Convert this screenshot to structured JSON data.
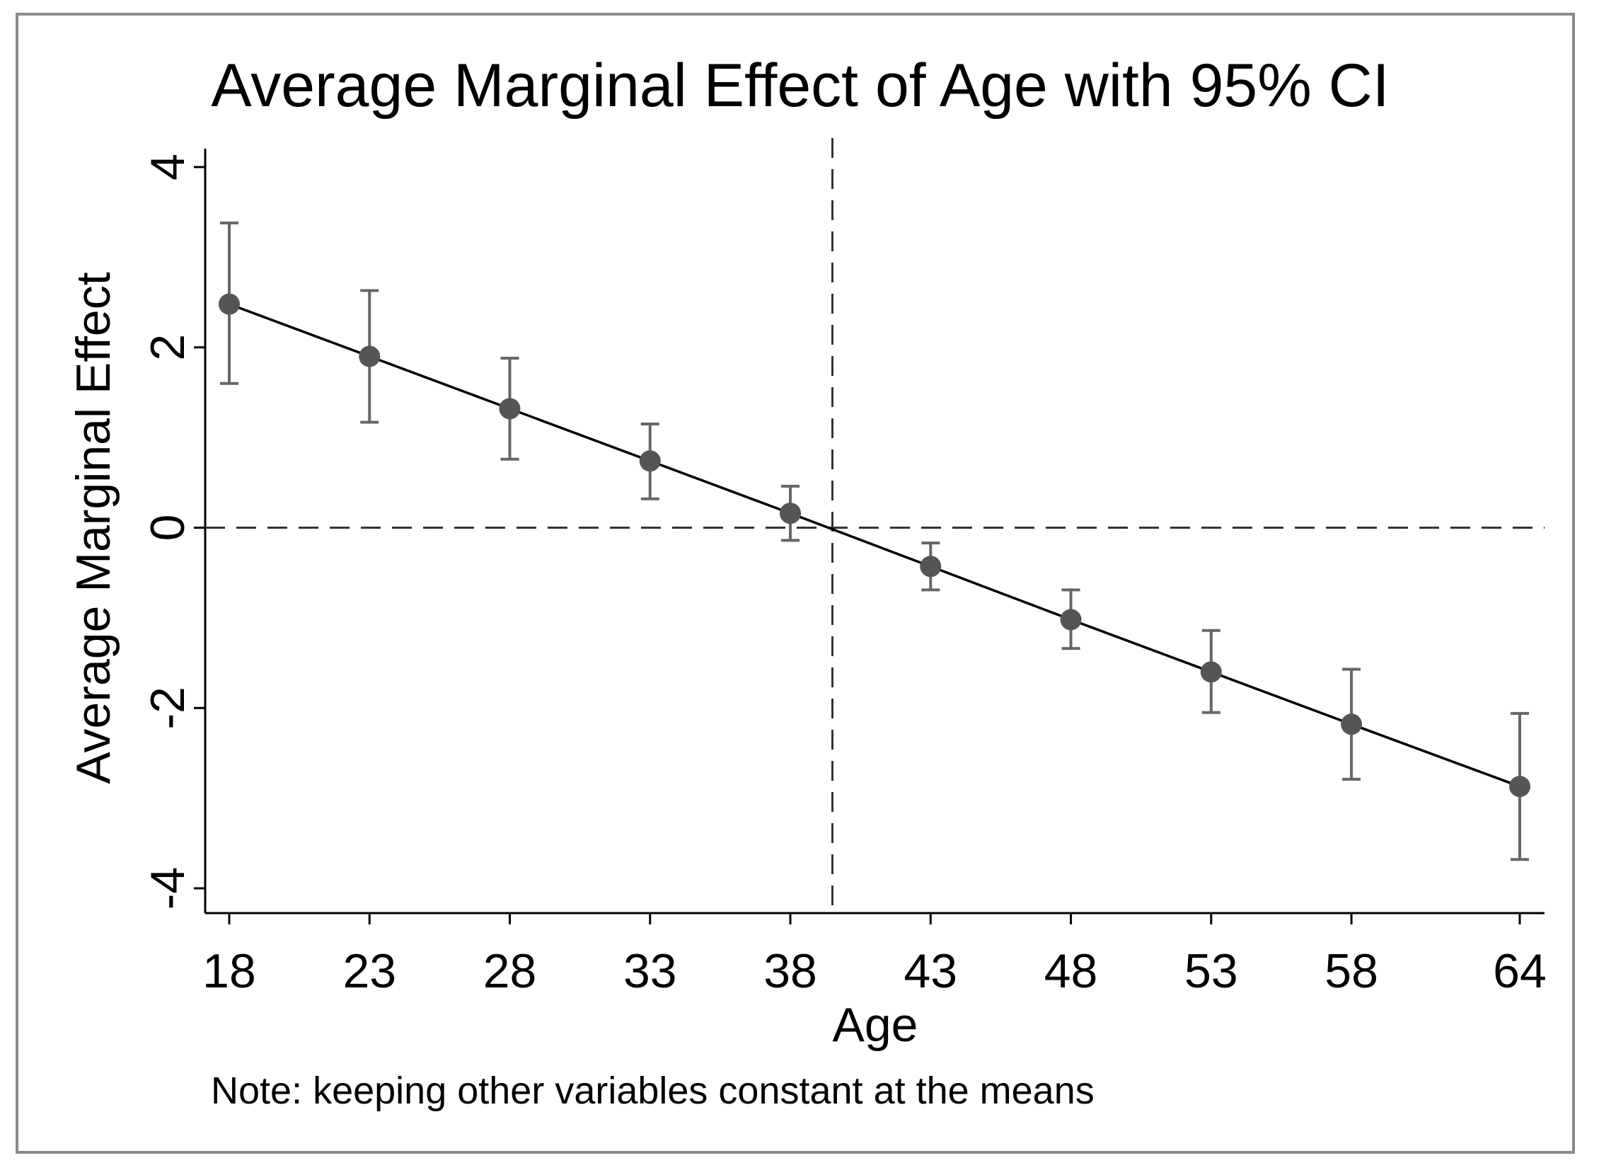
{
  "chart_data": {
    "type": "line",
    "title": "Average Marginal Effect of Age with 95% CI",
    "xlabel": "Age",
    "ylabel": "Average Marginal Effect",
    "note": "Note: keeping other variables constant at the means",
    "x": [
      18,
      23,
      28,
      33,
      38,
      43,
      48,
      53,
      58,
      64
    ],
    "x_tick_labels": [
      "18",
      "23",
      "28",
      "33",
      "38",
      "43",
      "48",
      "53",
      "58",
      "64"
    ],
    "y_ticks": [
      -4,
      -2,
      0,
      2,
      4
    ],
    "y_tick_labels": [
      "-4",
      "-2",
      "0",
      "2",
      "4"
    ],
    "xlim": [
      18,
      64
    ],
    "ylim": [
      -4,
      4
    ],
    "series": [
      {
        "name": "Average Marginal Effect",
        "values": [
          2.48,
          1.9,
          1.32,
          0.74,
          0.16,
          -0.43,
          -1.02,
          -1.6,
          -2.18,
          -2.87
        ],
        "ci_lower": [
          1.6,
          1.17,
          0.76,
          0.32,
          -0.14,
          -0.69,
          -1.34,
          -2.05,
          -2.79,
          -3.68
        ],
        "ci_upper": [
          3.38,
          2.63,
          1.88,
          1.15,
          0.46,
          -0.17,
          -0.69,
          -1.14,
          -1.57,
          -2.06
        ]
      }
    ],
    "reference_lines": {
      "y": 0,
      "x": 39.5
    },
    "colors": {
      "line": "#000000",
      "marker": "#555555",
      "ci": "#666666",
      "frame": "#8a8a8a"
    }
  }
}
